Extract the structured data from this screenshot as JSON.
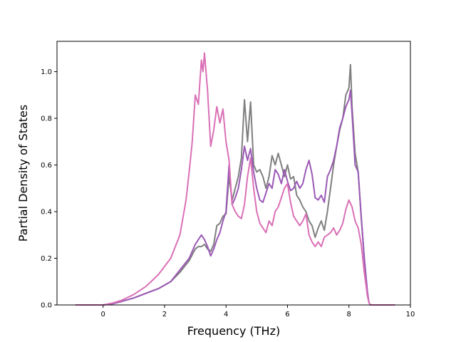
{
  "chart_data": {
    "type": "line",
    "xlabel": "Frequency (THz)",
    "ylabel": "Partial Density of States",
    "xlim": [
      -1.5,
      10
    ],
    "ylim": [
      0,
      1.13
    ],
    "xticks": [
      0,
      2,
      4,
      6,
      8,
      10
    ],
    "yticks": [
      0.0,
      0.2,
      0.4,
      0.6,
      0.8,
      1.0
    ],
    "ytick_labels": [
      "0.0",
      "0.2",
      "0.4",
      "0.6",
      "0.8",
      "1.0"
    ],
    "grid": false,
    "series": [
      {
        "color": "#7f7f7f",
        "x": [
          -0.9,
          0,
          0.3,
          0.6,
          1,
          1.4,
          1.8,
          2.2,
          2.5,
          2.8,
          3,
          3.1,
          3.2,
          3.3,
          3.4,
          3.5,
          3.6,
          3.7,
          3.8,
          3.9,
          4,
          4.1,
          4.2,
          4.3,
          4.4,
          4.5,
          4.6,
          4.7,
          4.8,
          4.9,
          5,
          5.1,
          5.2,
          5.3,
          5.4,
          5.5,
          5.6,
          5.7,
          5.8,
          5.9,
          6,
          6.1,
          6.2,
          6.3,
          6.4,
          6.5,
          6.6,
          6.7,
          6.8,
          6.9,
          7,
          7.1,
          7.2,
          7.3,
          7.4,
          7.5,
          7.6,
          7.7,
          7.8,
          7.9,
          8,
          8.05,
          8.1,
          8.2,
          8.3,
          8.4,
          8.5,
          8.6,
          8.65,
          8.7,
          9.5
        ],
        "y": [
          0,
          0,
          0.005,
          0.015,
          0.03,
          0.05,
          0.07,
          0.1,
          0.14,
          0.19,
          0.24,
          0.25,
          0.25,
          0.26,
          0.24,
          0.23,
          0.26,
          0.34,
          0.35,
          0.38,
          0.39,
          0.55,
          0.45,
          0.5,
          0.55,
          0.63,
          0.88,
          0.7,
          0.87,
          0.6,
          0.57,
          0.58,
          0.55,
          0.5,
          0.55,
          0.64,
          0.6,
          0.65,
          0.6,
          0.55,
          0.6,
          0.54,
          0.55,
          0.47,
          0.45,
          0.42,
          0.4,
          0.36,
          0.34,
          0.29,
          0.33,
          0.36,
          0.32,
          0.4,
          0.5,
          0.6,
          0.68,
          0.75,
          0.8,
          0.9,
          0.93,
          1.03,
          0.85,
          0.65,
          0.57,
          0.37,
          0.2,
          0.05,
          0.01,
          0,
          0
        ]
      },
      {
        "color": "#9b59b6",
        "x": [
          -0.9,
          0,
          0.3,
          0.6,
          1,
          1.4,
          1.8,
          2.2,
          2.5,
          2.8,
          3,
          3.1,
          3.2,
          3.3,
          3.4,
          3.5,
          3.6,
          3.7,
          3.8,
          3.9,
          4,
          4.1,
          4.2,
          4.3,
          4.4,
          4.5,
          4.6,
          4.7,
          4.8,
          4.9,
          5,
          5.1,
          5.2,
          5.3,
          5.4,
          5.5,
          5.6,
          5.7,
          5.8,
          5.9,
          6,
          6.1,
          6.2,
          6.3,
          6.4,
          6.5,
          6.6,
          6.7,
          6.8,
          6.9,
          7,
          7.1,
          7.2,
          7.3,
          7.4,
          7.5,
          7.6,
          7.7,
          7.8,
          7.9,
          8,
          8.05,
          8.1,
          8.2,
          8.3,
          8.4,
          8.5,
          8.6,
          8.65,
          8.7,
          9.5
        ],
        "y": [
          0,
          0,
          0.005,
          0.015,
          0.03,
          0.05,
          0.07,
          0.1,
          0.15,
          0.2,
          0.26,
          0.28,
          0.3,
          0.28,
          0.25,
          0.21,
          0.24,
          0.28,
          0.31,
          0.36,
          0.4,
          0.6,
          0.43,
          0.46,
          0.5,
          0.58,
          0.68,
          0.62,
          0.67,
          0.57,
          0.5,
          0.45,
          0.44,
          0.48,
          0.52,
          0.5,
          0.58,
          0.56,
          0.52,
          0.58,
          0.53,
          0.49,
          0.5,
          0.53,
          0.5,
          0.52,
          0.58,
          0.62,
          0.56,
          0.46,
          0.45,
          0.47,
          0.44,
          0.55,
          0.58,
          0.62,
          0.68,
          0.76,
          0.8,
          0.85,
          0.88,
          0.92,
          0.82,
          0.6,
          0.57,
          0.38,
          0.2,
          0.06,
          0.01,
          0,
          0
        ]
      },
      {
        "color": "#da70b6",
        "x": [
          -0.9,
          0,
          0.3,
          0.6,
          1,
          1.4,
          1.8,
          2.2,
          2.5,
          2.7,
          2.8,
          2.9,
          3,
          3.1,
          3.2,
          3.25,
          3.3,
          3.4,
          3.5,
          3.6,
          3.7,
          3.8,
          3.9,
          4,
          4.1,
          4.2,
          4.3,
          4.4,
          4.5,
          4.6,
          4.7,
          4.8,
          4.9,
          5,
          5.1,
          5.2,
          5.3,
          5.4,
          5.5,
          5.6,
          5.7,
          5.8,
          5.9,
          6,
          6.1,
          6.2,
          6.3,
          6.4,
          6.5,
          6.6,
          6.7,
          6.8,
          6.9,
          7,
          7.1,
          7.2,
          7.3,
          7.4,
          7.5,
          7.6,
          7.7,
          7.8,
          7.9,
          8,
          8.1,
          8.2,
          8.3,
          8.4,
          8.5,
          8.6,
          8.65,
          8.7,
          9.5
        ],
        "y": [
          0,
          0,
          0.008,
          0.02,
          0.045,
          0.08,
          0.13,
          0.2,
          0.3,
          0.45,
          0.57,
          0.7,
          0.9,
          0.86,
          1.05,
          1.0,
          1.08,
          0.92,
          0.68,
          0.75,
          0.85,
          0.78,
          0.84,
          0.7,
          0.62,
          0.43,
          0.4,
          0.38,
          0.37,
          0.43,
          0.55,
          0.63,
          0.5,
          0.4,
          0.35,
          0.33,
          0.31,
          0.36,
          0.34,
          0.4,
          0.42,
          0.46,
          0.5,
          0.52,
          0.44,
          0.38,
          0.36,
          0.34,
          0.36,
          0.39,
          0.3,
          0.27,
          0.25,
          0.27,
          0.25,
          0.29,
          0.3,
          0.31,
          0.33,
          0.3,
          0.32,
          0.35,
          0.41,
          0.45,
          0.42,
          0.36,
          0.33,
          0.26,
          0.14,
          0.04,
          0.01,
          0,
          0
        ]
      }
    ]
  }
}
